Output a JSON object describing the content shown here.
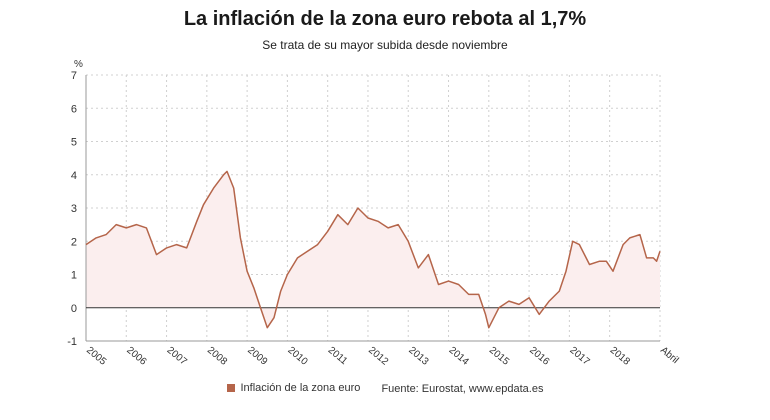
{
  "header": {
    "title": "La inflación de la zona euro rebota al 1,7%",
    "subtitle": "Se trata de su mayor subida desde noviembre"
  },
  "footer": {
    "legend_label": "Inflación de la zona euro",
    "source": "Fuente: Eurostat, www.epdata.es"
  },
  "colors": {
    "series": "#b5654a",
    "fill": "#fbeeee",
    "grid": "#d0d0d0",
    "zero": "#333333"
  },
  "chart_data": {
    "type": "area",
    "title": "La inflación de la zona euro rebota al 1,7%",
    "subtitle": "Se trata de su mayor subida desde noviembre",
    "ylabel": "%",
    "ylim": [
      -1,
      7
    ],
    "yticks": [
      -1,
      0,
      1,
      2,
      3,
      4,
      5,
      6,
      7
    ],
    "grid": true,
    "legend_position": "bottom",
    "xticks": [
      "2005",
      "2006",
      "2007",
      "2008",
      "2009",
      "2010",
      "2011",
      "2012",
      "2013",
      "2014",
      "2015",
      "2016",
      "2017",
      "2018",
      "Abril"
    ],
    "series": [
      {
        "name": "Inflación de la zona euro",
        "points": [
          [
            "2005-01",
            1.9
          ],
          [
            "2005-04",
            2.1
          ],
          [
            "2005-07",
            2.2
          ],
          [
            "2005-10",
            2.5
          ],
          [
            "2006-01",
            2.4
          ],
          [
            "2006-04",
            2.5
          ],
          [
            "2006-07",
            2.4
          ],
          [
            "2006-10",
            1.6
          ],
          [
            "2007-01",
            1.8
          ],
          [
            "2007-04",
            1.9
          ],
          [
            "2007-07",
            1.8
          ],
          [
            "2007-10",
            2.6
          ],
          [
            "2007-12",
            3.1
          ],
          [
            "2008-03",
            3.6
          ],
          [
            "2008-06",
            4.0
          ],
          [
            "2008-07",
            4.1
          ],
          [
            "2008-09",
            3.6
          ],
          [
            "2008-11",
            2.1
          ],
          [
            "2009-01",
            1.1
          ],
          [
            "2009-03",
            0.6
          ],
          [
            "2009-05",
            0.0
          ],
          [
            "2009-07",
            -0.6
          ],
          [
            "2009-09",
            -0.3
          ],
          [
            "2009-11",
            0.5
          ],
          [
            "2010-01",
            1.0
          ],
          [
            "2010-04",
            1.5
          ],
          [
            "2010-07",
            1.7
          ],
          [
            "2010-10",
            1.9
          ],
          [
            "2011-01",
            2.3
          ],
          [
            "2011-04",
            2.8
          ],
          [
            "2011-07",
            2.5
          ],
          [
            "2011-10",
            3.0
          ],
          [
            "2012-01",
            2.7
          ],
          [
            "2012-04",
            2.6
          ],
          [
            "2012-07",
            2.4
          ],
          [
            "2012-10",
            2.5
          ],
          [
            "2013-01",
            2.0
          ],
          [
            "2013-04",
            1.2
          ],
          [
            "2013-07",
            1.6
          ],
          [
            "2013-10",
            0.7
          ],
          [
            "2014-01",
            0.8
          ],
          [
            "2014-04",
            0.7
          ],
          [
            "2014-07",
            0.4
          ],
          [
            "2014-10",
            0.4
          ],
          [
            "2014-12",
            -0.2
          ],
          [
            "2015-01",
            -0.6
          ],
          [
            "2015-04",
            0.0
          ],
          [
            "2015-07",
            0.2
          ],
          [
            "2015-10",
            0.1
          ],
          [
            "2016-01",
            0.3
          ],
          [
            "2016-04",
            -0.2
          ],
          [
            "2016-07",
            0.2
          ],
          [
            "2016-10",
            0.5
          ],
          [
            "2016-12",
            1.1
          ],
          [
            "2017-02",
            2.0
          ],
          [
            "2017-04",
            1.9
          ],
          [
            "2017-07",
            1.3
          ],
          [
            "2017-10",
            1.4
          ],
          [
            "2017-12",
            1.4
          ],
          [
            "2018-02",
            1.1
          ],
          [
            "2018-05",
            1.9
          ],
          [
            "2018-07",
            2.1
          ],
          [
            "2018-10",
            2.2
          ],
          [
            "2018-12",
            1.5
          ],
          [
            "2019-02",
            1.5
          ],
          [
            "2019-03",
            1.4
          ],
          [
            "2019-04",
            1.7
          ]
        ]
      }
    ]
  }
}
